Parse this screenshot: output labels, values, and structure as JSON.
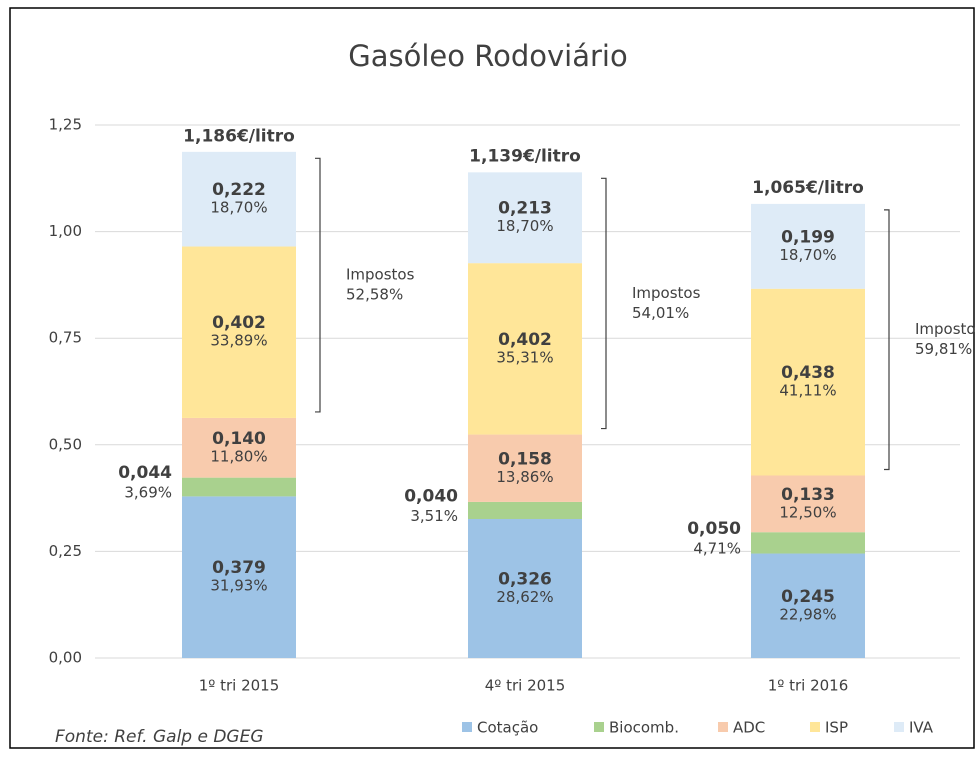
{
  "chart_data": {
    "type": "stacked_bar",
    "title": "Gasóleo Rodoviário",
    "categories": [
      "1º tri 2015",
      "4º tri 2015",
      "1º tri 2016"
    ],
    "series": [
      {
        "name": "Cotação",
        "color": "#9dc3e6",
        "values": [
          0.379,
          0.326,
          0.245
        ],
        "value_labels": [
          "0,379",
          "0,326",
          "0,245"
        ],
        "share_labels": [
          "31,93%",
          "28,62%",
          "22,98%"
        ]
      },
      {
        "name": "Biocomb.",
        "color": "#a9d18e",
        "values": [
          0.044,
          0.04,
          0.05
        ],
        "value_labels": [
          "0,044",
          "0,040",
          "0,050"
        ],
        "share_labels": [
          "3,69%",
          "3,51%",
          "4,71%"
        ]
      },
      {
        "name": "ADC",
        "color": "#f8cbad",
        "values": [
          0.14,
          0.158,
          0.133
        ],
        "value_labels": [
          "0,140",
          "0,158",
          "0,133"
        ],
        "share_labels": [
          "11,80%",
          "13,86%",
          "12,50%"
        ]
      },
      {
        "name": "ISP",
        "color": "#ffe699",
        "values": [
          0.402,
          0.402,
          0.438
        ],
        "value_labels": [
          "0,402",
          "0,402",
          "0,438"
        ],
        "share_labels": [
          "33,89%",
          "35,31%",
          "41,11%"
        ]
      },
      {
        "name": "IVA",
        "color": "#deebf7",
        "values": [
          0.222,
          0.213,
          0.199
        ],
        "value_labels": [
          "0,222",
          "0,213",
          "0,199"
        ],
        "share_labels": [
          "18,70%",
          "18,70%",
          "18,70%"
        ]
      }
    ],
    "totals": [
      1.186,
      1.139,
      1.065
    ],
    "total_labels": [
      "1,186€/litro",
      "1,139€/litro",
      "1,065€/litro"
    ],
    "tax_label": "Impostos",
    "tax_shares": [
      "52,58%",
      "54,01%",
      "59,81%"
    ],
    "ylim": [
      0,
      1.25
    ],
    "yticks": [
      {
        "value": 0,
        "label": "0,00"
      },
      {
        "value": 0.25,
        "label": "0,25"
      },
      {
        "value": 0.5,
        "label": "0,50"
      },
      {
        "value": 0.75,
        "label": "0,75"
      },
      {
        "value": 1,
        "label": "1,00"
      },
      {
        "value": 1.25,
        "label": "1,25"
      }
    ],
    "grid": true,
    "legend": "bottom-right",
    "source": "Fonte: Ref. Galp e DGEG"
  }
}
